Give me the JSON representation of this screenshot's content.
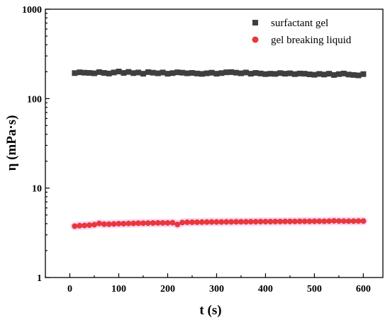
{
  "chart_data": {
    "type": "scatter",
    "xlabel": "t (s)",
    "ylabel": "η (mPa·s)",
    "xlim": [
      -50,
      640
    ],
    "ylim": [
      1,
      1000
    ],
    "yscale": "log",
    "xticks": [
      0,
      100,
      200,
      300,
      400,
      500,
      600
    ],
    "yticks": [
      1,
      10,
      100,
      1000
    ],
    "xtick_labels": [
      "0",
      "100",
      "200",
      "300",
      "400",
      "500",
      "600"
    ],
    "ytick_labels": [
      "1",
      "10",
      "100",
      "1000"
    ],
    "grid": false,
    "legend_position": "top-right",
    "series": [
      {
        "name": "surfactant gel",
        "marker": "square",
        "color": "#3f3f3f",
        "x": [
          10,
          20,
          30,
          40,
          50,
          60,
          70,
          80,
          90,
          100,
          110,
          120,
          130,
          140,
          150,
          160,
          170,
          180,
          190,
          200,
          210,
          220,
          230,
          240,
          250,
          260,
          270,
          280,
          290,
          300,
          310,
          320,
          330,
          340,
          350,
          360,
          370,
          380,
          390,
          400,
          410,
          420,
          430,
          440,
          450,
          460,
          470,
          480,
          490,
          500,
          510,
          520,
          530,
          540,
          550,
          560,
          570,
          580,
          590,
          600
        ],
        "y": [
          193,
          197,
          195,
          194,
          192,
          198,
          194,
          191,
          196,
          201,
          194,
          199,
          193,
          196,
          190,
          198,
          195,
          192,
          196,
          190,
          193,
          197,
          195,
          192,
          194,
          191,
          189,
          192,
          195,
          190,
          193,
          197,
          198,
          195,
          192,
          196,
          190,
          194,
          191,
          188,
          190,
          189,
          193,
          190,
          192,
          188,
          191,
          190,
          187,
          185,
          189,
          186,
          190,
          184,
          188,
          191,
          186,
          184,
          182,
          188
        ]
      },
      {
        "name": "gel breaking liquid",
        "marker": "circle",
        "color": "#e8383b",
        "x": [
          10,
          20,
          30,
          40,
          50,
          60,
          70,
          80,
          90,
          100,
          110,
          120,
          130,
          140,
          150,
          160,
          170,
          180,
          190,
          200,
          210,
          220,
          230,
          240,
          250,
          260,
          270,
          280,
          290,
          300,
          310,
          320,
          330,
          340,
          350,
          360,
          370,
          380,
          390,
          400,
          410,
          420,
          430,
          440,
          450,
          460,
          470,
          480,
          490,
          500,
          510,
          520,
          530,
          540,
          550,
          560,
          570,
          580,
          590,
          600
        ],
        "y": [
          3.75,
          3.8,
          3.82,
          3.85,
          3.9,
          4.02,
          3.95,
          3.95,
          3.97,
          4.0,
          4.0,
          4.02,
          4.03,
          4.05,
          4.05,
          4.06,
          4.07,
          4.08,
          4.08,
          4.08,
          4.1,
          3.92,
          4.12,
          4.15,
          4.15,
          4.15,
          4.16,
          4.17,
          4.18,
          4.18,
          4.18,
          4.19,
          4.19,
          4.2,
          4.2,
          4.2,
          4.21,
          4.21,
          4.22,
          4.22,
          4.22,
          4.23,
          4.23,
          4.24,
          4.24,
          4.24,
          4.25,
          4.25,
          4.25,
          4.26,
          4.26,
          4.26,
          4.27,
          4.3,
          4.28,
          4.27,
          4.27,
          4.27,
          4.28,
          4.28
        ]
      }
    ]
  }
}
